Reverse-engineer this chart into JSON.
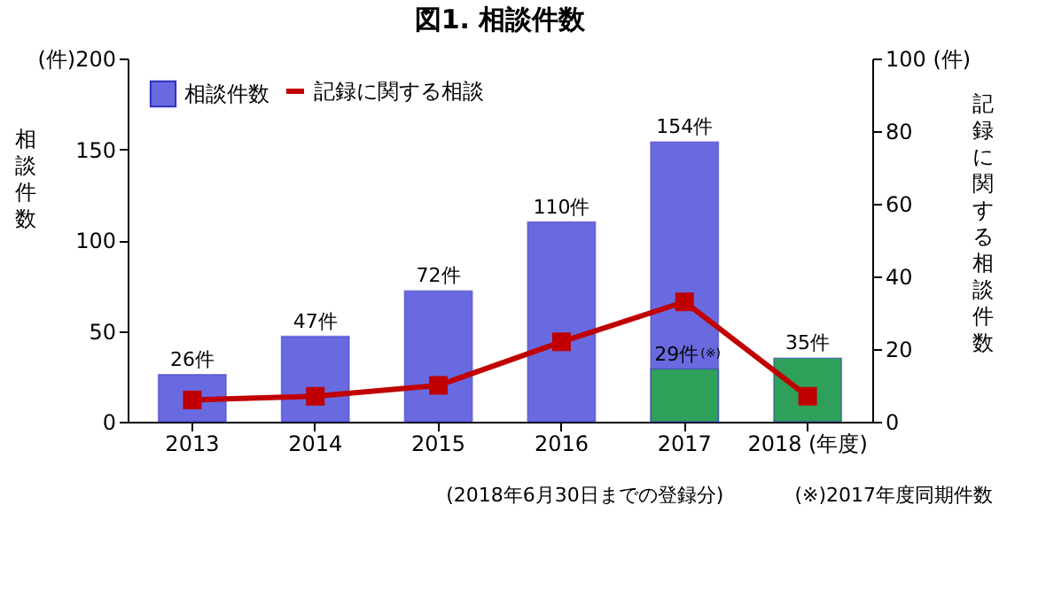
{
  "chart_data": {
    "type": "bar",
    "title": "図1. 相談件数",
    "ylabel": "相談件数",
    "y2label": "記録に関する相談件数",
    "categories": [
      "2013",
      "2014",
      "2015",
      "2016",
      "2017",
      "2018 (年度)"
    ],
    "series": [
      {
        "name": "相談件数",
        "color": "#6a6ae0",
        "values": [
          26,
          47,
          72,
          110,
          154,
          null
        ],
        "value_labels": [
          "26件",
          "47件",
          "72件",
          "110件",
          "154件",
          null
        ]
      },
      {
        "color": "#2ea05a",
        "values": [
          null,
          null,
          null,
          null,
          29,
          35
        ],
        "value_labels": [
          null,
          null,
          null,
          null,
          "29件$^{(※)}$",
          "35件"
        ]
      },
      {
        "name": "記録に関する相談",
        "type": "line",
        "axis": "y2",
        "color": "#c00000",
        "marker": "square",
        "line_style": "solid",
        "values": [
          6,
          7,
          10,
          22,
          33,
          7
        ]
      }
    ],
    "ylim": [
      0,
      200
    ],
    "yticks": [
      0,
      50,
      100,
      150,
      {
        "value": 200,
        "label": "(件)200"
      }
    ],
    "y2lim": [
      0,
      100
    ],
    "y2ticks": [
      0,
      20,
      40,
      60,
      80,
      {
        "value": 100,
        "label": "100 (件)"
      }
    ],
    "grid": false,
    "legend": "top left",
    "annotations": [
      "(2018年6月30日までの登録分)",
      "(※)2017年度同期件数"
    ]
  }
}
